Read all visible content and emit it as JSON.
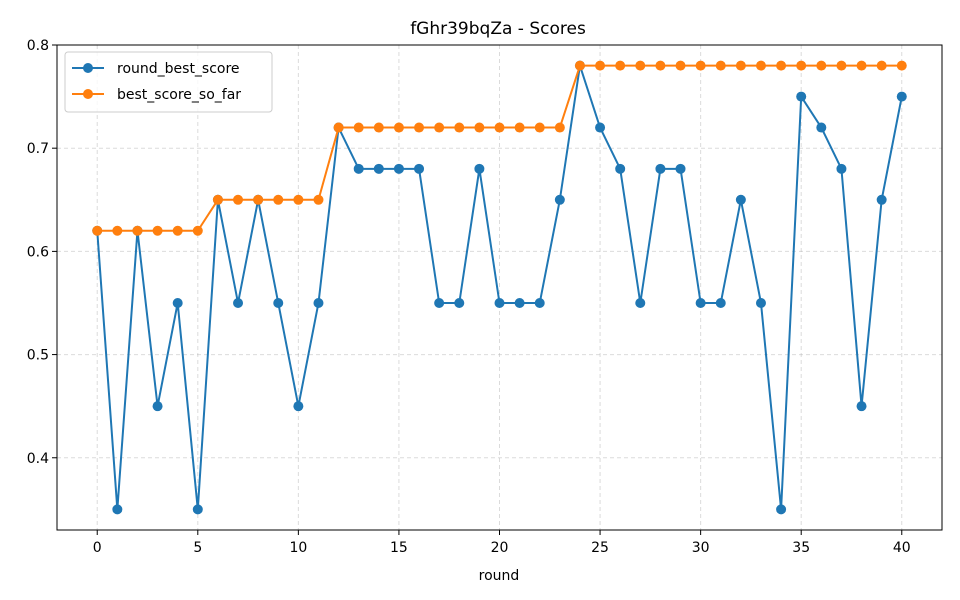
{
  "chart_data": {
    "type": "line",
    "title": "fGhr39bqZa - Scores",
    "xlabel": "round",
    "ylabel": "",
    "xlim": [
      -2,
      42
    ],
    "ylim": [
      0.33,
      0.8
    ],
    "x_ticks": [
      "0",
      "5",
      "10",
      "15",
      "20",
      "25",
      "30",
      "35",
      "40"
    ],
    "y_ticks": [
      "0.4",
      "0.5",
      "0.6",
      "0.7",
      "0.8"
    ],
    "grid": true,
    "legend_position": "top-left",
    "x": [
      0,
      1,
      2,
      3,
      4,
      5,
      6,
      7,
      8,
      9,
      10,
      11,
      12,
      13,
      14,
      15,
      16,
      17,
      18,
      19,
      20,
      21,
      22,
      23,
      24,
      25,
      26,
      27,
      28,
      29,
      30,
      31,
      32,
      33,
      34,
      35,
      36,
      37,
      38,
      39,
      40
    ],
    "series": [
      {
        "name": "round_best_score",
        "color": "#1f77b4",
        "values": [
          0.62,
          0.35,
          0.62,
          0.45,
          0.55,
          0.35,
          0.65,
          0.55,
          0.65,
          0.55,
          0.45,
          0.55,
          0.72,
          0.68,
          0.68,
          0.68,
          0.68,
          0.55,
          0.55,
          0.68,
          0.55,
          0.55,
          0.55,
          0.65,
          0.78,
          0.72,
          0.68,
          0.55,
          0.68,
          0.68,
          0.55,
          0.55,
          0.65,
          0.55,
          0.35,
          0.75,
          0.72,
          0.68,
          0.45,
          0.65,
          0.75
        ]
      },
      {
        "name": "best_score_so_far",
        "color": "#ff7f0e",
        "values": [
          0.62,
          0.62,
          0.62,
          0.62,
          0.62,
          0.62,
          0.65,
          0.65,
          0.65,
          0.65,
          0.65,
          0.65,
          0.72,
          0.72,
          0.72,
          0.72,
          0.72,
          0.72,
          0.72,
          0.72,
          0.72,
          0.72,
          0.72,
          0.72,
          0.78,
          0.78,
          0.78,
          0.78,
          0.78,
          0.78,
          0.78,
          0.78,
          0.78,
          0.78,
          0.78,
          0.78,
          0.78,
          0.78,
          0.78,
          0.78,
          0.78
        ]
      }
    ]
  }
}
